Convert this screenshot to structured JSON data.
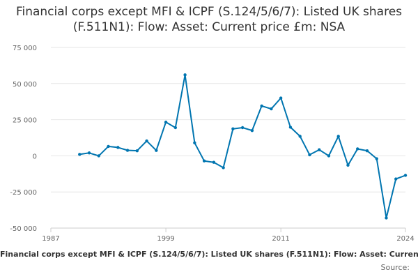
{
  "chart_data": {
    "type": "line",
    "title": "Financial corps except MFI & ICPF (S.124/5/6/7): Listed UK shares (F.511N1): Flow: Asset: Current price £m: NSA",
    "xlabel": "",
    "ylabel": "",
    "xlim": [
      1987,
      2024
    ],
    "ylim": [
      -50000,
      75000
    ],
    "x_ticks": [
      1987,
      1999,
      2011,
      2024
    ],
    "x_tick_labels": [
      "1987",
      "1999",
      "2011",
      "2024"
    ],
    "y_ticks": [
      75000,
      50000,
      25000,
      0,
      -25000,
      -50000
    ],
    "y_tick_labels": [
      "75 000",
      "50 000",
      "25 000",
      "0",
      "-25 000",
      "-50 000"
    ],
    "grid": true,
    "line_color": "#0075b0",
    "series": [
      {
        "name": "Financial corps except MFI & ICPF (S.124/5/6/7): Listed UK shares (F.511N1): Flow: Asset: Current price £m: NSA",
        "x": [
          1990,
          1991,
          1992,
          1993,
          1994,
          1995,
          1996,
          1997,
          1998,
          1999,
          2000,
          2001,
          2002,
          2003,
          2004,
          2005,
          2006,
          2007,
          2008,
          2009,
          2010,
          2011,
          2012,
          2013,
          2014,
          2015,
          2016,
          2017,
          2018,
          2019,
          2020,
          2021,
          2022,
          2023,
          2024
        ],
        "y": [
          1000,
          2000,
          0,
          6500,
          5800,
          3800,
          3500,
          10300,
          3700,
          23300,
          19500,
          56000,
          9000,
          -3500,
          -4500,
          -8200,
          18700,
          19500,
          17500,
          34500,
          32500,
          40000,
          19800,
          13500,
          700,
          4200,
          0,
          13500,
          -6500,
          4800,
          3500,
          -2000,
          -43000,
          -16000,
          -13500
        ]
      }
    ],
    "legend_text": "Financial corps except MFI & ICPF (S.124/5/6/7): Listed UK shares (F.511N1): Flow: Asset: Current price £m: NSA",
    "source_label": "Source:"
  }
}
